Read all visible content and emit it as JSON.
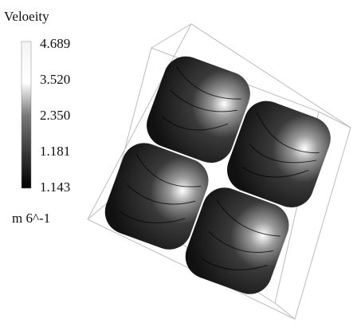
{
  "legend": {
    "title": "Veloeity",
    "labels": [
      "4.689",
      "3.520",
      "2.350",
      "1.181",
      "1.143"
    ],
    "unit": "m 6^-1"
  }
}
